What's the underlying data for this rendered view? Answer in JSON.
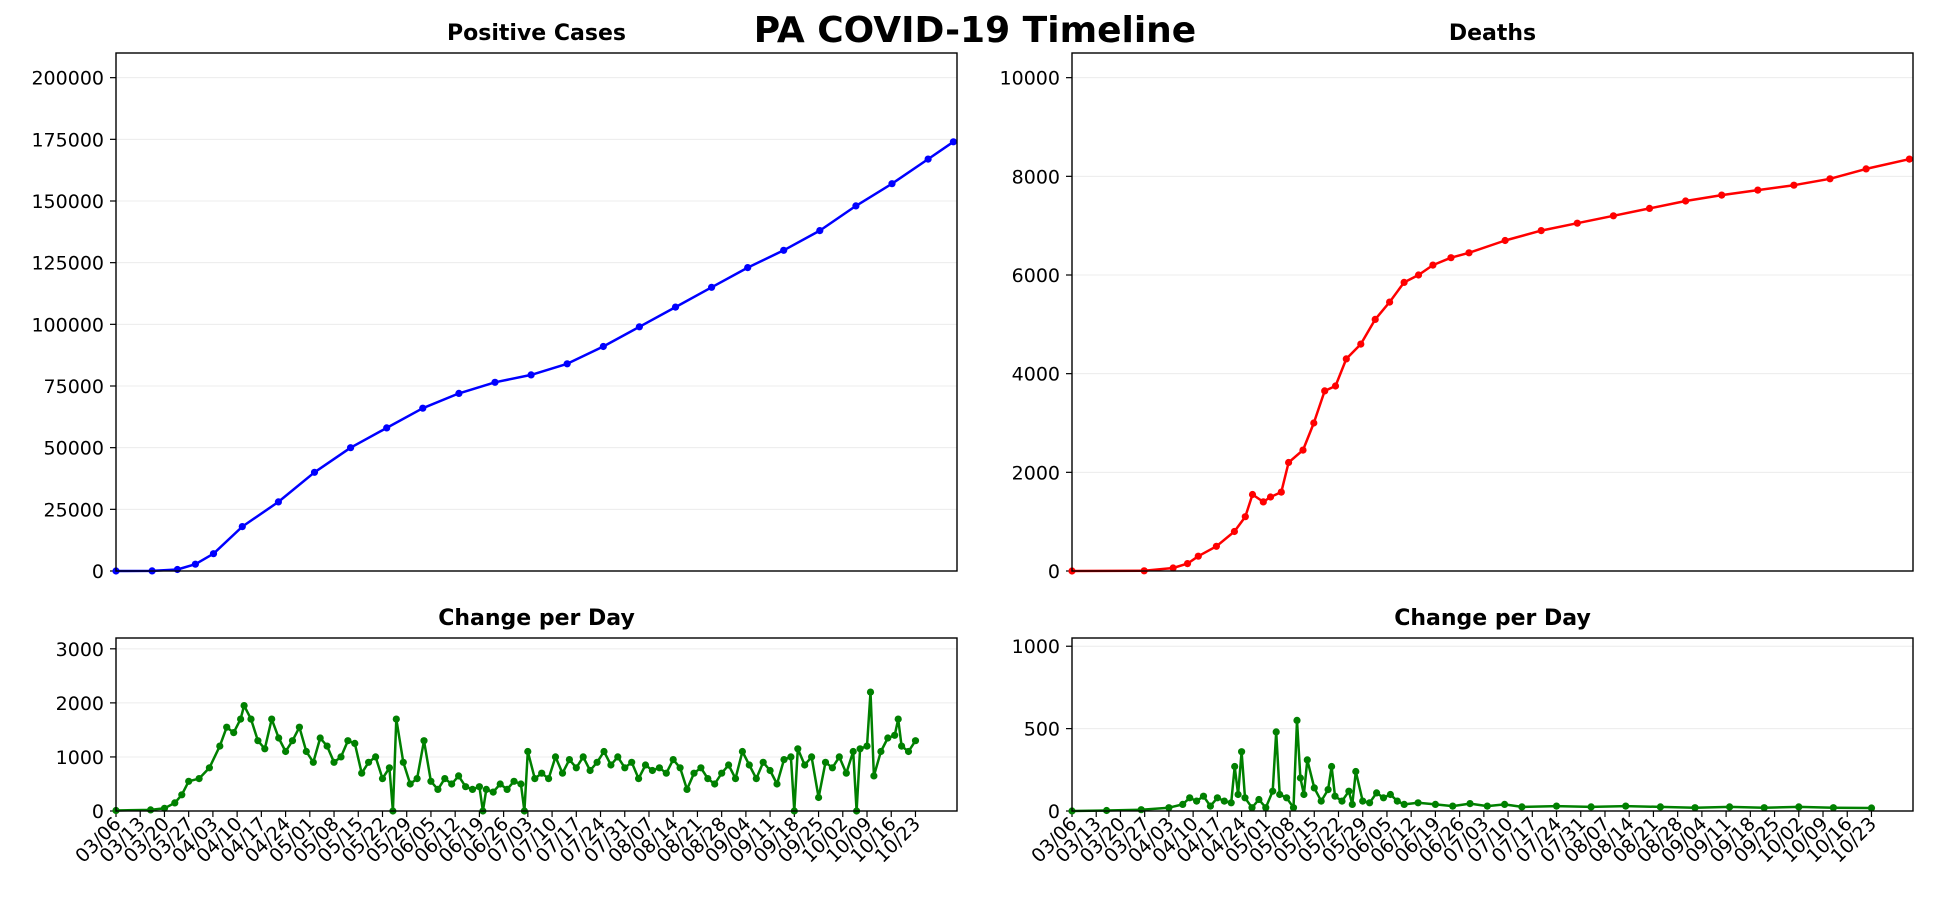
{
  "title": "PA COVID-19 Timeline",
  "tick_labels": [
    "03/06",
    "03/13",
    "03/20",
    "03/27",
    "04/03",
    "04/10",
    "04/17",
    "04/24",
    "05/01",
    "05/08",
    "05/15",
    "05/22",
    "05/29",
    "06/05",
    "06/12",
    "06/19",
    "06/26",
    "07/03",
    "07/10",
    "07/17",
    "07/24",
    "07/31",
    "08/07",
    "08/14",
    "08/21",
    "08/28",
    "09/04",
    "09/11",
    "09/18",
    "09/25",
    "10/02",
    "10/09",
    "10/16",
    "10/23"
  ],
  "chart_data": [
    {
      "id": "cases",
      "type": "line",
      "title": "Positive Cases",
      "xlabel": "",
      "ylabel": "",
      "x_start": "03/06",
      "xlim_days": [
        0,
        233
      ],
      "ylim": [
        0,
        210000
      ],
      "yticks": [
        0,
        25000,
        50000,
        75000,
        100000,
        125000,
        150000,
        175000,
        200000
      ],
      "grid": "y",
      "color": "#0000ff",
      "series": [
        {
          "name": "",
          "points": [
            [
              0,
              1
            ],
            [
              10,
              60
            ],
            [
              17,
              600
            ],
            [
              22,
              2750
            ],
            [
              27,
              7000
            ],
            [
              35,
              18000
            ],
            [
              45,
              28000
            ],
            [
              55,
              40000
            ],
            [
              65,
              50000
            ],
            [
              75,
              58000
            ],
            [
              85,
              66000
            ],
            [
              95,
              72000
            ],
            [
              105,
              76500
            ],
            [
              115,
              79500
            ],
            [
              125,
              84000
            ],
            [
              135,
              91000
            ],
            [
              145,
              99000
            ],
            [
              155,
              107000
            ],
            [
              165,
              115000
            ],
            [
              175,
              123000
            ],
            [
              185,
              130000
            ],
            [
              195,
              138000
            ],
            [
              205,
              148000
            ],
            [
              215,
              157000
            ],
            [
              225,
              167000
            ],
            [
              232,
              174000
            ]
          ]
        }
      ]
    },
    {
      "id": "deaths",
      "type": "line",
      "title": "Deaths",
      "xlabel": "",
      "ylabel": "",
      "x_start": "03/06",
      "xlim_days": [
        0,
        233
      ],
      "ylim": [
        0,
        10500
      ],
      "yticks": [
        0,
        2000,
        4000,
        6000,
        8000,
        10000
      ],
      "grid": "y",
      "color": "#ff0000",
      "series": [
        {
          "name": "",
          "points": [
            [
              0,
              0
            ],
            [
              20,
              5
            ],
            [
              28,
              60
            ],
            [
              32,
              150
            ],
            [
              35,
              300
            ],
            [
              40,
              500
            ],
            [
              45,
              800
            ],
            [
              48,
              1100
            ],
            [
              50,
              1550
            ],
            [
              53,
              1400
            ],
            [
              55,
              1500
            ],
            [
              58,
              1600
            ],
            [
              60,
              2200
            ],
            [
              64,
              2450
            ],
            [
              67,
              3000
            ],
            [
              70,
              3650
            ],
            [
              73,
              3750
            ],
            [
              76,
              4300
            ],
            [
              80,
              4600
            ],
            [
              84,
              5100
            ],
            [
              88,
              5450
            ],
            [
              92,
              5850
            ],
            [
              96,
              6000
            ],
            [
              100,
              6200
            ],
            [
              105,
              6350
            ],
            [
              110,
              6450
            ],
            [
              120,
              6700
            ],
            [
              130,
              6900
            ],
            [
              140,
              7050
            ],
            [
              150,
              7200
            ],
            [
              160,
              7350
            ],
            [
              170,
              7500
            ],
            [
              180,
              7620
            ],
            [
              190,
              7720
            ],
            [
              200,
              7820
            ],
            [
              210,
              7950
            ],
            [
              220,
              8150
            ],
            [
              232,
              8350
            ]
          ]
        }
      ]
    },
    {
      "id": "cases_change",
      "type": "line",
      "title": "Change per Day",
      "xlabel": "",
      "ylabel": "",
      "x_start": "03/06",
      "xlim_days": [
        0,
        243
      ],
      "ylim": [
        0,
        3200
      ],
      "yticks": [
        0,
        1000,
        2000,
        3000
      ],
      "grid": "y",
      "color": "#008000",
      "series": [
        {
          "name": "",
          "points": [
            [
              0,
              10
            ],
            [
              10,
              20
            ],
            [
              14,
              50
            ],
            [
              17,
              150
            ],
            [
              19,
              300
            ],
            [
              21,
              550
            ],
            [
              24,
              600
            ],
            [
              27,
              800
            ],
            [
              30,
              1200
            ],
            [
              32,
              1550
            ],
            [
              34,
              1450
            ],
            [
              36,
              1700
            ],
            [
              37,
              1950
            ],
            [
              39,
              1700
            ],
            [
              41,
              1300
            ],
            [
              43,
              1150
            ],
            [
              45,
              1700
            ],
            [
              47,
              1350
            ],
            [
              49,
              1100
            ],
            [
              51,
              1300
            ],
            [
              53,
              1550
            ],
            [
              55,
              1100
            ],
            [
              57,
              900
            ],
            [
              59,
              1350
            ],
            [
              61,
              1200
            ],
            [
              63,
              900
            ],
            [
              65,
              1000
            ],
            [
              67,
              1300
            ],
            [
              69,
              1250
            ],
            [
              71,
              700
            ],
            [
              73,
              900
            ],
            [
              75,
              1000
            ],
            [
              77,
              600
            ],
            [
              79,
              800
            ],
            [
              80,
              0
            ],
            [
              81,
              1700
            ],
            [
              83,
              900
            ],
            [
              85,
              500
            ],
            [
              87,
              600
            ],
            [
              89,
              1300
            ],
            [
              91,
              550
            ],
            [
              93,
              400
            ],
            [
              95,
              600
            ],
            [
              97,
              500
            ],
            [
              99,
              650
            ],
            [
              101,
              450
            ],
            [
              103,
              400
            ],
            [
              105,
              450
            ],
            [
              106,
              0
            ],
            [
              107,
              400
            ],
            [
              109,
              350
            ],
            [
              111,
              500
            ],
            [
              113,
              400
            ],
            [
              115,
              550
            ],
            [
              117,
              500
            ],
            [
              118,
              0
            ],
            [
              119,
              1100
            ],
            [
              121,
              600
            ],
            [
              123,
              700
            ],
            [
              125,
              600
            ],
            [
              127,
              1000
            ],
            [
              129,
              700
            ],
            [
              131,
              950
            ],
            [
              133,
              800
            ],
            [
              135,
              1000
            ],
            [
              137,
              750
            ],
            [
              139,
              900
            ],
            [
              141,
              1100
            ],
            [
              143,
              850
            ],
            [
              145,
              1000
            ],
            [
              147,
              800
            ],
            [
              149,
              900
            ],
            [
              151,
              600
            ],
            [
              153,
              850
            ],
            [
              155,
              750
            ],
            [
              157,
              800
            ],
            [
              159,
              700
            ],
            [
              161,
              950
            ],
            [
              163,
              800
            ],
            [
              165,
              400
            ],
            [
              167,
              700
            ],
            [
              169,
              800
            ],
            [
              171,
              600
            ],
            [
              173,
              500
            ],
            [
              175,
              700
            ],
            [
              177,
              850
            ],
            [
              179,
              600
            ],
            [
              181,
              1100
            ],
            [
              183,
              850
            ],
            [
              185,
              600
            ],
            [
              187,
              900
            ],
            [
              189,
              750
            ],
            [
              191,
              500
            ],
            [
              193,
              950
            ],
            [
              195,
              1000
            ],
            [
              196,
              0
            ],
            [
              197,
              1150
            ],
            [
              199,
              850
            ],
            [
              201,
              1000
            ],
            [
              203,
              250
            ],
            [
              205,
              900
            ],
            [
              207,
              800
            ],
            [
              209,
              1000
            ],
            [
              211,
              700
            ],
            [
              213,
              1100
            ],
            [
              214,
              0
            ],
            [
              215,
              1150
            ],
            [
              217,
              1200
            ],
            [
              218,
              2200
            ],
            [
              219,
              650
            ],
            [
              221,
              1100
            ],
            [
              223,
              1350
            ],
            [
              225,
              1400
            ],
            [
              226,
              1700
            ],
            [
              227,
              1200
            ],
            [
              229,
              1100
            ],
            [
              231,
              1300
            ]
          ]
        }
      ]
    },
    {
      "id": "deaths_change",
      "type": "line",
      "title": "Change per Day",
      "xlabel": "",
      "ylabel": "",
      "x_start": "03/06",
      "xlim_days": [
        0,
        243
      ],
      "ylim": [
        0,
        1050
      ],
      "yticks": [
        0,
        500,
        1000
      ],
      "grid": "y",
      "color": "#008000",
      "series": [
        {
          "name": "",
          "points": [
            [
              0,
              0
            ],
            [
              10,
              3
            ],
            [
              20,
              8
            ],
            [
              28,
              20
            ],
            [
              32,
              40
            ],
            [
              34,
              80
            ],
            [
              36,
              60
            ],
            [
              38,
              90
            ],
            [
              40,
              30
            ],
            [
              42,
              80
            ],
            [
              44,
              60
            ],
            [
              46,
              50
            ],
            [
              47,
              270
            ],
            [
              48,
              100
            ],
            [
              49,
              360
            ],
            [
              50,
              80
            ],
            [
              52,
              20
            ],
            [
              54,
              70
            ],
            [
              56,
              20
            ],
            [
              58,
              120
            ],
            [
              59,
              480
            ],
            [
              60,
              100
            ],
            [
              62,
              80
            ],
            [
              64,
              20
            ],
            [
              65,
              550
            ],
            [
              66,
              200
            ],
            [
              67,
              100
            ],
            [
              68,
              310
            ],
            [
              70,
              140
            ],
            [
              72,
              60
            ],
            [
              74,
              130
            ],
            [
              75,
              270
            ],
            [
              76,
              90
            ],
            [
              78,
              60
            ],
            [
              80,
              120
            ],
            [
              81,
              40
            ],
            [
              82,
              240
            ],
            [
              84,
              60
            ],
            [
              86,
              50
            ],
            [
              88,
              110
            ],
            [
              90,
              80
            ],
            [
              92,
              100
            ],
            [
              94,
              60
            ],
            [
              96,
              40
            ],
            [
              100,
              50
            ],
            [
              105,
              40
            ],
            [
              110,
              30
            ],
            [
              115,
              45
            ],
            [
              120,
              30
            ],
            [
              125,
              40
            ],
            [
              130,
              25
            ],
            [
              140,
              30
            ],
            [
              150,
              25
            ],
            [
              160,
              30
            ],
            [
              170,
              25
            ],
            [
              180,
              20
            ],
            [
              190,
              25
            ],
            [
              200,
              20
            ],
            [
              210,
              25
            ],
            [
              220,
              20
            ],
            [
              231,
              18
            ]
          ]
        }
      ]
    }
  ]
}
